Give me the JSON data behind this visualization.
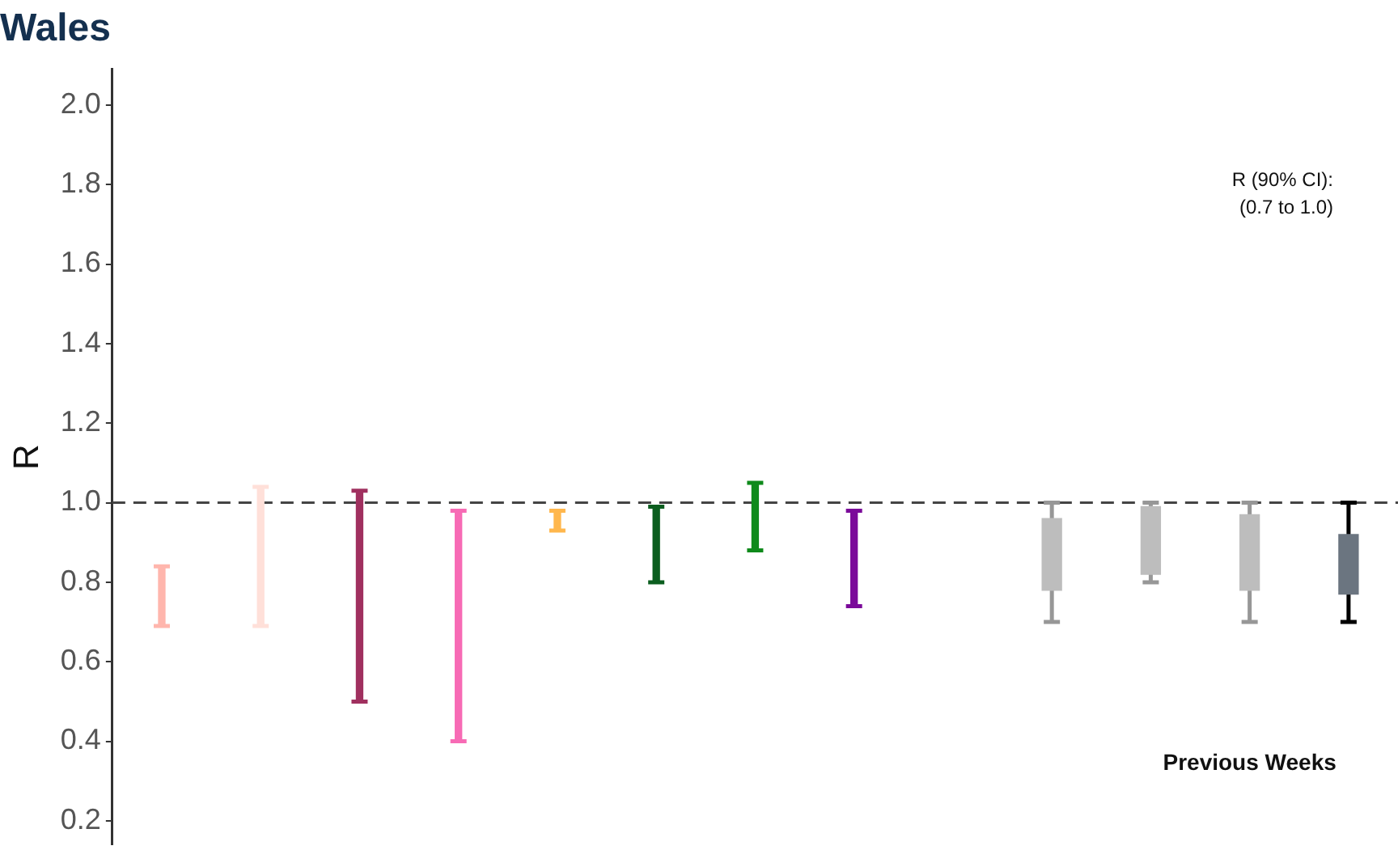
{
  "chart_data": {
    "type": "bar",
    "title": "Wales",
    "ylabel": "R",
    "categories": [
      null,
      null,
      null,
      null,
      null,
      null,
      null,
      null,
      null,
      null,
      null,
      null,
      null
    ],
    "series": [
      {
        "colors": [
          "#ffb6ad",
          "#ffe0d9",
          "#a0305f",
          "#f76bb5",
          "#ffb74d",
          "#0b5e1f",
          "#0f8a1b",
          "#7b0a9a",
          null,
          null,
          null,
          null,
          null
        ],
        "base": [
          0.69,
          0.69,
          0.5,
          0.4,
          0.93,
          0.8,
          0.88,
          0.74,
          null,
          null,
          null,
          null,
          null
        ],
        "values": [
          0.15,
          0.35,
          0.53,
          0.58,
          0.05,
          0.19,
          0.17,
          0.24,
          null,
          null,
          null,
          null,
          null
        ],
        "errors": [
          [
            0.69,
            0.84
          ],
          [
            0.69,
            1.04
          ],
          [
            0.5,
            1.03
          ],
          [
            0.4,
            0.98
          ],
          [
            0.93,
            0.98
          ],
          [
            0.8,
            0.99
          ],
          [
            0.88,
            1.05
          ],
          [
            0.74,
            0.98
          ],
          null,
          null,
          null,
          null,
          null
        ]
      },
      {
        "colors": [
          null,
          null,
          null,
          null,
          null,
          null,
          null,
          null,
          null,
          "#bdbdbd",
          "#bdbdbd",
          "#bdbdbd",
          "#6b7580"
        ],
        "base": [
          null,
          null,
          null,
          null,
          null,
          null,
          null,
          null,
          null,
          0.78,
          0.82,
          0.78,
          0.77
        ],
        "values": [
          null,
          null,
          null,
          null,
          null,
          null,
          null,
          null,
          null,
          0.18,
          0.17,
          0.19,
          0.15
        ],
        "errors": [
          null,
          null,
          null,
          null,
          null,
          null,
          null,
          null,
          null,
          [
            0.7,
            1.0
          ],
          [
            0.8,
            1.0
          ],
          [
            0.7,
            1.0
          ],
          [
            0.7,
            1.0
          ]
        ]
      }
    ],
    "ylim": [
      0.14,
      2.09
    ],
    "yticks": [
      {
        "value": 0.2,
        "label": "0.2"
      },
      {
        "value": 0.4,
        "label": "0.4"
      },
      {
        "value": 0.6,
        "label": "0.6"
      },
      {
        "value": 0.8,
        "label": "0.8"
      },
      {
        "value": 1.0,
        "label": "1.0"
      },
      {
        "value": 1.2,
        "label": "1.2"
      },
      {
        "value": 1.4,
        "label": "1.4"
      },
      {
        "value": 1.6,
        "label": "1.6"
      },
      {
        "value": 1.8,
        "label": "1.8"
      },
      {
        "value": 2.0,
        "label": "2.0"
      }
    ],
    "ref_lines": [
      {
        "axis": "y",
        "value": 1.0,
        "color": "#444444",
        "line_style": "dashed"
      }
    ],
    "annotations": [
      "R (90% CI):\n(0.7 to 1.0)",
      "Previous Weeks"
    ],
    "grid": false,
    "legend": false,
    "tick_labels": "y"
  }
}
